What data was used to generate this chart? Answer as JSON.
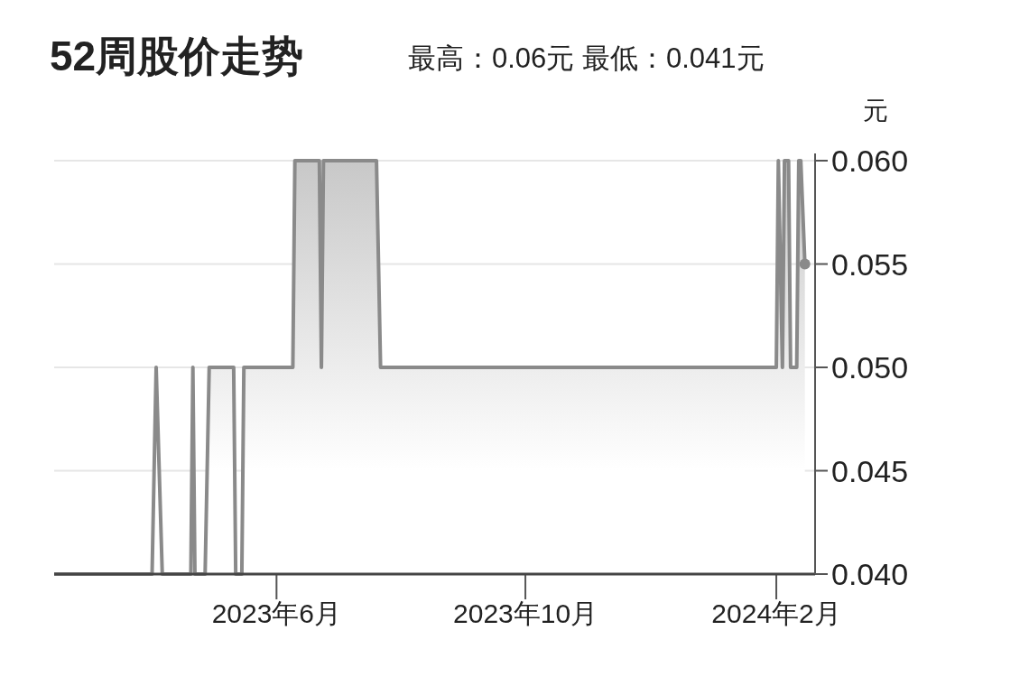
{
  "chart_data": {
    "type": "area",
    "title": "52周股价走势",
    "subtitle": "最高：0.06元   最低：0.041元",
    "ylabel": "元",
    "x": [
      "2023-02-12",
      "2023-04-01",
      "2023-04-03",
      "2023-04-06",
      "2023-04-20",
      "2023-04-21",
      "2023-04-22",
      "2023-04-27",
      "2023-04-29",
      "2023-05-11",
      "2023-05-12",
      "2023-05-15",
      "2023-05-16",
      "2023-06-09",
      "2023-06-10",
      "2023-06-22",
      "2023-06-23",
      "2023-06-24",
      "2023-07-20",
      "2023-07-22",
      "2024-02-01",
      "2024-02-02",
      "2024-02-04",
      "2024-02-05",
      "2024-02-07",
      "2024-02-08",
      "2024-02-11",
      "2024-02-12",
      "2024-02-13",
      "2024-02-15"
    ],
    "series": [
      {
        "color": "#8a8a8a",
        "values": [
          0.04,
          0.04,
          0.05,
          0.04,
          0.04,
          0.05,
          0.04,
          0.04,
          0.05,
          0.05,
          0.04,
          0.04,
          0.05,
          0.05,
          0.06,
          0.06,
          0.05,
          0.06,
          0.06,
          0.05,
          0.05,
          0.06,
          0.05,
          0.06,
          0.06,
          0.05,
          0.05,
          0.06,
          0.06,
          0.055
        ]
      }
    ],
    "xlim": [
      "2023-02-12",
      "2024-02-20"
    ],
    "xticks": [
      {
        "value": "2023-06-01",
        "label": "2023年6月"
      },
      {
        "value": "2023-10-01",
        "label": "2023年10月"
      },
      {
        "value": "2024-02-01",
        "label": "2024年2月"
      }
    ],
    "ylim": [
      0.04,
      0.06
    ],
    "yticks": [
      {
        "value": 0.04,
        "label": "0.040"
      },
      {
        "value": 0.045,
        "label": "0.045"
      },
      {
        "value": 0.05,
        "label": "0.050"
      },
      {
        "value": 0.055,
        "label": "0.055"
      },
      {
        "value": 0.06,
        "label": "0.060"
      }
    ],
    "grid": "y"
  }
}
